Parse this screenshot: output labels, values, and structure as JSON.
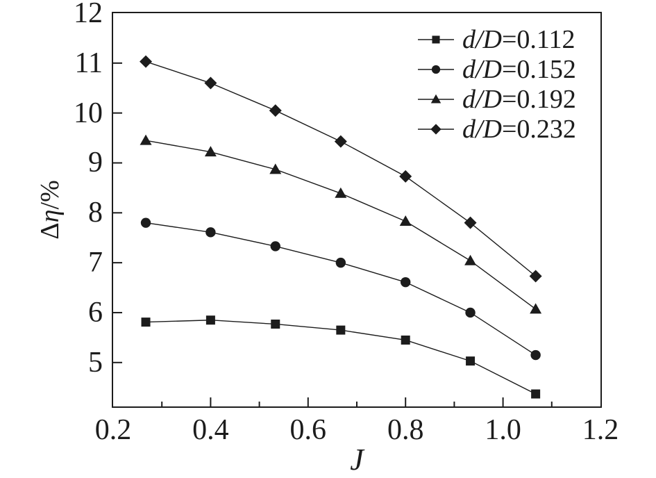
{
  "figure": {
    "background": "#ffffff",
    "ink_color": "#1c1c1c"
  },
  "chart_data": {
    "type": "line",
    "title": "",
    "xlabel": "J",
    "ylabel": "Δη/%",
    "ylabel_parts": {
      "delta": "Δ",
      "eta": "η",
      "unit": "/%"
    },
    "xlim": [
      0.2,
      1.2
    ],
    "ylim": [
      4.12,
      12
    ],
    "grid": false,
    "legend_position": "top-right-inside",
    "x": [
      0.267,
      0.4,
      0.533,
      0.667,
      0.8,
      0.933,
      1.067
    ],
    "series": [
      {
        "name": "d/D=0.112",
        "marker": "square",
        "values": [
          5.81,
          5.85,
          5.77,
          5.65,
          5.45,
          5.03,
          4.37
        ]
      },
      {
        "name": "d/D=0.152",
        "marker": "circle",
        "values": [
          7.8,
          7.61,
          7.33,
          7.0,
          6.61,
          6.0,
          5.15
        ]
      },
      {
        "name": "d/D=0.192",
        "marker": "triangle",
        "values": [
          9.45,
          9.22,
          8.87,
          8.39,
          7.83,
          7.04,
          6.07
        ]
      },
      {
        "name": "d/D=0.232",
        "marker": "diamond",
        "values": [
          11.03,
          10.6,
          10.05,
          9.43,
          8.73,
          7.8,
          6.73
        ]
      }
    ],
    "yticks": {
      "values": [
        5,
        6,
        7,
        8,
        9,
        10,
        11,
        12
      ],
      "labels": [
        "5",
        "6",
        "7",
        "8",
        "9",
        "10",
        "11",
        "12"
      ]
    },
    "xticks": {
      "values": [
        0.2,
        0.4,
        0.6,
        0.8,
        1.0,
        1.2
      ],
      "labels": [
        "0.2",
        "0.4",
        "0.6",
        "0.8",
        "1.0",
        "1.2"
      ]
    },
    "xticks_minor": [
      0.3,
      0.5,
      0.7,
      0.9,
      1.1
    ]
  },
  "legend": {
    "items": [
      {
        "prefix": "d/D",
        "suffix": "=0.112",
        "marker": "square"
      },
      {
        "prefix": "d/D",
        "suffix": "=0.152",
        "marker": "circle"
      },
      {
        "prefix": "d/D",
        "suffix": "=0.192",
        "marker": "triangle"
      },
      {
        "prefix": "d/D",
        "suffix": "=0.232",
        "marker": "diamond"
      }
    ]
  }
}
